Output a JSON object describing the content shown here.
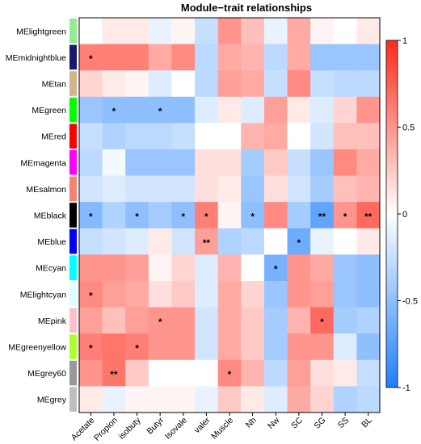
{
  "chart_data": {
    "type": "heatmap",
    "title": "Module−trait relationships",
    "rows": [
      "MElightgreen",
      "MEmidnightblue",
      "MEtan",
      "MEgreen",
      "MEred",
      "MEmagenta",
      "MEsalmon",
      "MEblack",
      "MEblue",
      "MEcyan",
      "MElightcyan",
      "MEpink",
      "MEgreenyellow",
      "MEgrey60",
      "MEgrey"
    ],
    "row_colors": [
      "#90ee90",
      "#191970",
      "#d2b48c",
      "#00ff00",
      "#ff0000",
      "#ff00ff",
      "#fa8072",
      "#000000",
      "#0000ff",
      "#00ffff",
      "#e0ffff",
      "#ffc0cb",
      "#adff2f",
      "#999999",
      "#bebebe"
    ],
    "columns": [
      "Acetate",
      "Propion",
      "isobuty",
      "Butyr",
      "Isovale",
      "valer",
      "Muscle",
      "Nh",
      "Nw",
      "SC",
      "SG",
      "SS",
      "BL"
    ],
    "values": [
      [
        0.0,
        0.1,
        0.1,
        -0.1,
        0.05,
        -0.25,
        0.5,
        0.3,
        -0.1,
        0.4,
        0.05,
        0.0,
        0.1
      ],
      [
        0.6,
        0.6,
        0.6,
        0.4,
        0.55,
        -0.3,
        0.4,
        0.35,
        -0.3,
        0.4,
        -0.45,
        -0.45,
        -0.45
      ],
      [
        0.2,
        0.1,
        0.05,
        -0.15,
        0.0,
        -0.3,
        0.45,
        0.4,
        -0.25,
        0.55,
        -0.25,
        -0.3,
        -0.3
      ],
      [
        -0.45,
        -0.5,
        -0.5,
        -0.5,
        -0.5,
        -0.15,
        0.1,
        -0.15,
        0.45,
        0.1,
        -0.15,
        0.2,
        0.5
      ],
      [
        -0.25,
        -0.35,
        -0.3,
        -0.3,
        -0.25,
        0.0,
        0.0,
        0.35,
        0.4,
        0.0,
        -0.2,
        0.3,
        0.3
      ],
      [
        -0.3,
        -0.05,
        -0.45,
        -0.45,
        -0.45,
        0.15,
        0.15,
        -0.4,
        0.25,
        -0.25,
        -0.45,
        0.55,
        0.4
      ],
      [
        -0.2,
        -0.15,
        -0.2,
        -0.2,
        -0.2,
        0.15,
        0.1,
        -0.45,
        0.15,
        -0.2,
        -0.4,
        0.3,
        0.35
      ],
      [
        -0.55,
        -0.35,
        -0.5,
        -0.4,
        -0.5,
        0.6,
        0.05,
        -0.5,
        0.55,
        -0.4,
        -0.7,
        0.5,
        0.7
      ],
      [
        -0.25,
        -0.2,
        -0.15,
        0.1,
        -0.2,
        0.45,
        -0.35,
        -0.3,
        0.0,
        -0.65,
        -0.1,
        0.0,
        0.1
      ],
      [
        0.5,
        0.5,
        0.45,
        0.05,
        0.2,
        -0.15,
        0.35,
        0.0,
        -0.6,
        0.5,
        0.4,
        -0.45,
        -0.5
      ],
      [
        0.55,
        0.45,
        0.4,
        0.15,
        0.25,
        -0.15,
        0.4,
        0.2,
        -0.45,
        0.5,
        0.45,
        -0.45,
        -0.5
      ],
      [
        0.45,
        0.3,
        0.45,
        0.5,
        0.5,
        -0.2,
        0.4,
        0.25,
        -0.4,
        0.35,
        0.7,
        -0.4,
        -0.35
      ],
      [
        0.6,
        0.65,
        0.6,
        0.5,
        0.5,
        -0.2,
        0.4,
        0.25,
        -0.4,
        0.5,
        0.5,
        -0.15,
        -0.5
      ],
      [
        0.5,
        0.65,
        0.25,
        0.0,
        0.0,
        0.0,
        0.55,
        0.35,
        -0.3,
        0.45,
        0.15,
        0.1,
        -0.25
      ],
      [
        0.1,
        -0.1,
        0.05,
        0.05,
        0.05,
        -0.1,
        0.25,
        0.1,
        -0.15,
        0.4,
        0.2,
        -0.35,
        -0.3
      ]
    ],
    "stars": [
      [
        "",
        "",
        "",
        "",
        "",
        "",
        "",
        "",
        "",
        "",
        "",
        "",
        ""
      ],
      [
        "*",
        "",
        "",
        "",
        "",
        "",
        "",
        "",
        "",
        "",
        "",
        "",
        ""
      ],
      [
        "",
        "",
        "",
        "",
        "",
        "",
        "",
        "",
        "",
        "",
        "",
        "",
        ""
      ],
      [
        "",
        "*",
        "",
        "*",
        "",
        "",
        "",
        "",
        "",
        "",
        "",
        "",
        ""
      ],
      [
        "",
        "",
        "",
        "",
        "",
        "",
        "",
        "",
        "",
        "",
        "",
        "",
        ""
      ],
      [
        "",
        "",
        "",
        "",
        "",
        "",
        "",
        "",
        "",
        "",
        "",
        "",
        ""
      ],
      [
        "",
        "",
        "",
        "",
        "",
        "",
        "",
        "",
        "",
        "",
        "",
        "",
        ""
      ],
      [
        "*",
        "",
        "*",
        "",
        "*",
        "*",
        "",
        "*",
        "",
        "",
        "**",
        "*",
        "**"
      ],
      [
        "",
        "",
        "",
        "",
        "",
        "**",
        "",
        "",
        "",
        "*",
        "",
        "",
        ""
      ],
      [
        "",
        "",
        "",
        "",
        "",
        "",
        "",
        "",
        "*",
        "",
        "",
        "",
        ""
      ],
      [
        "*",
        "",
        "",
        "",
        "",
        "",
        "",
        "",
        "",
        "",
        "",
        "",
        ""
      ],
      [
        "",
        "",
        "",
        "*",
        "",
        "",
        "",
        "",
        "",
        "",
        "*",
        "",
        ""
      ],
      [
        "*",
        "",
        "*",
        "",
        "",
        "",
        "",
        "",
        "",
        "",
        "",
        "",
        ""
      ],
      [
        "",
        "**",
        "",
        "",
        "",
        "",
        "*",
        "",
        "",
        "",
        "",
        "",
        ""
      ],
      [
        "",
        "",
        "",
        "",
        "",
        "",
        "",
        "",
        "",
        "",
        "",
        "",
        ""
      ]
    ],
    "colorbar": {
      "range": [
        -1,
        1
      ],
      "ticks": [
        "-1",
        "-0.5",
        "0",
        "0.5",
        "1"
      ],
      "low_color": "#1e7fff",
      "mid_color": "#ffffff",
      "high_color": "#ff2a1a"
    }
  }
}
